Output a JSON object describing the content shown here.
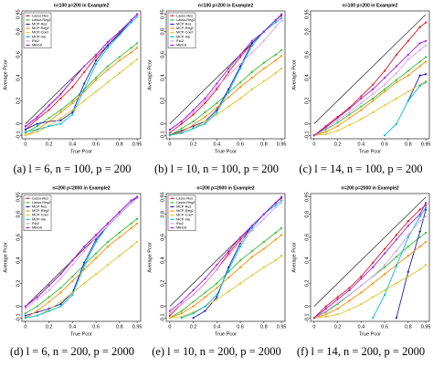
{
  "chart_data": [
    {
      "type": "line",
      "title": "n=100 p=200 in Example2",
      "caption": "(a) l = 6, n = 100, p = 200",
      "xlabel": "True Pcor",
      "ylabel": "Average Pcor",
      "legend": "upper left",
      "x": [
        0,
        0.1,
        0.2,
        0.3,
        0.4,
        0.5,
        0.6,
        0.7,
        0.8,
        0.9,
        0.95
      ],
      "xlim": [
        -0.03,
        0.98
      ],
      "xticks": [
        0,
        0.2,
        0.4,
        0.6,
        0.8,
        0.95
      ],
      "ylim": [
        -0.13,
        0.98
      ],
      "yticks": [
        -0.1,
        0,
        0.2,
        0.4,
        0.6,
        0.8,
        0.95
      ],
      "series": [
        {
          "name": "Lasso-Res",
          "color": "#e41a1c",
          "values": [
            -0.05,
            0.04,
            0.12,
            0.22,
            0.32,
            0.45,
            0.58,
            0.68,
            0.79,
            0.9,
            0.95
          ]
        },
        {
          "name": "Lasso-Reg2",
          "color": "#33c233",
          "values": [
            -0.08,
            -0.02,
            0.05,
            0.12,
            0.2,
            0.3,
            0.4,
            0.5,
            0.58,
            0.66,
            0.7
          ]
        },
        {
          "name": "MCP-Res",
          "color": "#1f1fbf",
          "values": [
            -0.05,
            0.0,
            0.02,
            0.03,
            0.1,
            0.35,
            0.55,
            0.68,
            0.78,
            0.9,
            0.95
          ]
        },
        {
          "name": "MCP-Reg2",
          "color": "#ff8c00",
          "values": [
            -0.1,
            -0.05,
            0.02,
            0.1,
            0.18,
            0.28,
            0.38,
            0.47,
            0.55,
            0.62,
            0.66
          ]
        },
        {
          "name": "MCP-Coef",
          "color": "#e6c229",
          "values": [
            -0.1,
            -0.07,
            -0.02,
            0.05,
            0.12,
            0.2,
            0.28,
            0.36,
            0.44,
            0.52,
            0.56
          ]
        },
        {
          "name": "MCP-Var",
          "color": "#00bfd8",
          "values": [
            -0.07,
            -0.05,
            -0.02,
            0.0,
            0.08,
            0.3,
            0.52,
            0.66,
            0.77,
            0.88,
            0.93
          ]
        },
        {
          "name": "Rlo2",
          "color": "#e0a0e8",
          "values": [
            -0.03,
            0.05,
            0.15,
            0.25,
            0.38,
            0.5,
            0.6,
            0.7,
            0.8,
            0.9,
            0.94
          ]
        },
        {
          "name": "MBGS",
          "color": "#a020f0",
          "values": [
            -0.02,
            0.06,
            0.16,
            0.26,
            0.38,
            0.5,
            0.6,
            0.71,
            0.8,
            0.9,
            0.95
          ]
        }
      ]
    },
    {
      "type": "line",
      "title": "n=100 p=200 in Example2",
      "caption": "(b) l = 10, n = 100, p = 200",
      "xlabel": "True Pcor",
      "ylabel": "Average Pcor",
      "legend": "upper left",
      "x": [
        0,
        0.1,
        0.2,
        0.3,
        0.4,
        0.5,
        0.6,
        0.7,
        0.8,
        0.9,
        0.95
      ],
      "xlim": [
        -0.03,
        0.98
      ],
      "xticks": [
        0,
        0.2,
        0.4,
        0.6,
        0.8,
        0.95
      ],
      "ylim": [
        -0.13,
        0.98
      ],
      "yticks": [
        -0.1,
        0,
        0.2,
        0.4,
        0.6,
        0.8,
        0.95
      ],
      "series": [
        {
          "name": "Lasso-Res",
          "color": "#e41a1c",
          "values": [
            -0.08,
            0.0,
            0.08,
            0.18,
            0.3,
            0.45,
            0.58,
            0.7,
            0.8,
            0.9,
            0.94
          ]
        },
        {
          "name": "Lasso-Reg2",
          "color": "#33c233",
          "values": [
            -0.1,
            -0.04,
            0.02,
            0.1,
            0.18,
            0.27,
            0.36,
            0.45,
            0.53,
            0.6,
            0.64
          ]
        },
        {
          "name": "MCP-Res",
          "color": "#1f1fbf",
          "values": [
            -0.1,
            -0.06,
            -0.02,
            0.02,
            0.12,
            0.3,
            0.5,
            0.7,
            0.8,
            0.9,
            0.95
          ]
        },
        {
          "name": "MCP-Reg2",
          "color": "#ff8c00",
          "values": [
            -0.1,
            -0.07,
            -0.01,
            0.06,
            0.14,
            0.23,
            0.32,
            0.4,
            0.48,
            0.55,
            0.59
          ]
        },
        {
          "name": "MCP-Coef",
          "color": "#e6c229",
          "values": [
            -0.1,
            -0.08,
            -0.04,
            0.02,
            0.08,
            0.15,
            0.22,
            0.3,
            0.37,
            0.44,
            0.48
          ]
        },
        {
          "name": "MCP-Var",
          "color": "#00bfd8",
          "values": [
            -0.1,
            -0.08,
            -0.04,
            0.0,
            0.1,
            0.28,
            0.48,
            0.68,
            0.8,
            0.88,
            0.92
          ]
        },
        {
          "name": "Rlo2",
          "color": "#e0a0e8",
          "values": [
            -0.06,
            0.02,
            0.1,
            0.2,
            0.32,
            0.42,
            0.52,
            0.62,
            0.72,
            0.84,
            0.9
          ]
        },
        {
          "name": "MBGS",
          "color": "#a020f0",
          "values": [
            -0.05,
            0.02,
            0.12,
            0.22,
            0.35,
            0.48,
            0.6,
            0.72,
            0.8,
            0.9,
            0.95
          ]
        }
      ]
    },
    {
      "type": "line",
      "title": "n=100 p=200 in Example2",
      "caption": "(c) l = 14, n = 100, p = 200",
      "xlabel": "True Pcor",
      "ylabel": "Average Pcor",
      "x": [
        0,
        0.1,
        0.2,
        0.3,
        0.4,
        0.5,
        0.6,
        0.7,
        0.8,
        0.9,
        0.95
      ],
      "xlim": [
        -0.03,
        0.98
      ],
      "xticks": [
        0,
        0.2,
        0.4,
        0.6,
        0.8,
        0.95
      ],
      "ylim": [
        -0.13,
        0.98
      ],
      "yticks": [
        -0.1,
        0,
        0.2,
        0.4,
        0.6,
        0.8,
        0.95
      ],
      "series": [
        {
          "name": "Lasso-Res",
          "color": "#e41a1c",
          "values": [
            -0.1,
            -0.02,
            0.06,
            0.14,
            0.24,
            0.34,
            0.46,
            0.6,
            0.72,
            0.84,
            0.88
          ]
        },
        {
          "name": "Lasso-Reg2",
          "color": "#33c233",
          "values": [
            -0.1,
            -0.05,
            0.01,
            0.08,
            0.15,
            0.22,
            0.3,
            0.38,
            0.46,
            0.54,
            0.58
          ]
        },
        {
          "name": "MCP-Res",
          "color": "#1f1fbf",
          "values": [
            null,
            null,
            null,
            null,
            null,
            null,
            null,
            null,
            0.2,
            0.42,
            0.43
          ]
        },
        {
          "name": "MCP-Reg2",
          "color": "#ff8c00",
          "values": [
            -0.1,
            -0.07,
            -0.02,
            0.05,
            0.12,
            0.2,
            0.28,
            0.36,
            0.42,
            0.5,
            0.54
          ]
        },
        {
          "name": "MCP-Coef",
          "color": "#e6c229",
          "values": [
            -0.1,
            -0.09,
            -0.06,
            -0.01,
            0.04,
            0.1,
            0.16,
            0.22,
            0.28,
            0.34,
            0.37
          ]
        },
        {
          "name": "MCP-Var",
          "color": "#00bfd8",
          "values": [
            null,
            null,
            null,
            null,
            null,
            null,
            -0.1,
            0.0,
            0.2,
            0.33,
            0.36
          ]
        },
        {
          "name": "Rlo2",
          "color": "#e0a0e8",
          "values": [
            -0.1,
            -0.04,
            0.03,
            0.1,
            0.18,
            0.26,
            0.34,
            0.44,
            0.56,
            0.64,
            0.68
          ]
        },
        {
          "name": "MBGS",
          "color": "#a020f0",
          "values": [
            -0.1,
            -0.03,
            0.05,
            0.13,
            0.22,
            0.3,
            0.4,
            0.5,
            0.6,
            0.7,
            0.72
          ]
        }
      ]
    },
    {
      "type": "line",
      "title": "n=200 p=2000 in Example2",
      "caption": "(d) l = 6, n = 200, p = 2000",
      "xlabel": "True Pcor",
      "ylabel": "Average Pcor",
      "legend": "upper left",
      "x": [
        0,
        0.1,
        0.2,
        0.3,
        0.4,
        0.5,
        0.6,
        0.7,
        0.8,
        0.9,
        0.95
      ],
      "xlim": [
        -0.03,
        0.98
      ],
      "xticks": [
        0,
        0.2,
        0.4,
        0.6,
        0.8,
        0.95
      ],
      "ylim": [
        -0.13,
        0.98
      ],
      "yticks": [
        -0.1,
        0,
        0.2,
        0.4,
        0.6,
        0.8,
        0.95
      ],
      "series": [
        {
          "name": "Lasso-Res",
          "color": "#e41a1c",
          "values": [
            0.0,
            0.08,
            0.18,
            0.28,
            0.4,
            0.52,
            0.62,
            0.72,
            0.82,
            0.92,
            0.95
          ]
        },
        {
          "name": "Lasso-Reg2",
          "color": "#33c233",
          "values": [
            -0.06,
            0.0,
            0.08,
            0.16,
            0.26,
            0.36,
            0.46,
            0.56,
            0.64,
            0.72,
            0.76
          ]
        },
        {
          "name": "MCP-Res",
          "color": "#1f1fbf",
          "values": [
            -0.08,
            -0.05,
            -0.02,
            0.02,
            0.12,
            0.38,
            0.58,
            0.7,
            0.8,
            0.9,
            0.95
          ]
        },
        {
          "name": "MCP-Reg2",
          "color": "#ff8c00",
          "values": [
            -0.1,
            -0.04,
            0.04,
            0.12,
            0.22,
            0.32,
            0.42,
            0.52,
            0.6,
            0.68,
            0.72
          ]
        },
        {
          "name": "MCP-Coef",
          "color": "#e6c229",
          "values": [
            -0.1,
            -0.08,
            -0.03,
            0.04,
            0.12,
            0.2,
            0.28,
            0.36,
            0.44,
            0.52,
            0.56
          ]
        },
        {
          "name": "MCP-Var",
          "color": "#00bfd8",
          "values": [
            -0.1,
            -0.08,
            -0.04,
            0.0,
            0.1,
            0.35,
            0.56,
            0.7,
            0.8,
            0.9,
            0.94
          ]
        },
        {
          "name": "Rlo2",
          "color": "#e0a0e8",
          "values": [
            -0.02,
            0.06,
            0.14,
            0.24,
            0.36,
            0.48,
            0.6,
            0.7,
            0.8,
            0.9,
            0.94
          ]
        },
        {
          "name": "MBGS",
          "color": "#a020f0",
          "values": [
            0.0,
            0.08,
            0.18,
            0.28,
            0.4,
            0.52,
            0.62,
            0.72,
            0.82,
            0.92,
            0.95
          ]
        }
      ]
    },
    {
      "type": "line",
      "title": "n=200 p=2000 in Example2",
      "caption": "(e) l = 10, n = 200, p = 2000",
      "xlabel": "True Pcor",
      "ylabel": "Average Pcor",
      "legend": "upper left",
      "x": [
        0,
        0.1,
        0.2,
        0.3,
        0.4,
        0.5,
        0.6,
        0.7,
        0.8,
        0.9,
        0.95
      ],
      "xlim": [
        -0.03,
        0.98
      ],
      "xticks": [
        0,
        0.2,
        0.4,
        0.6,
        0.8,
        0.95
      ],
      "ylim": [
        -0.13,
        0.98
      ],
      "yticks": [
        -0.1,
        0,
        0.2,
        0.4,
        0.6,
        0.8,
        0.95
      ],
      "series": [
        {
          "name": "Lasso-Res",
          "color": "#e41a1c",
          "values": [
            -0.08,
            0.02,
            0.1,
            0.2,
            0.32,
            0.46,
            0.58,
            0.7,
            0.8,
            0.9,
            0.94
          ]
        },
        {
          "name": "Lasso-Reg2",
          "color": "#33c233",
          "values": [
            -0.1,
            -0.04,
            0.04,
            0.12,
            0.2,
            0.3,
            0.4,
            0.48,
            0.56,
            0.64,
            0.68
          ]
        },
        {
          "name": "MCP-Res",
          "color": "#1f1fbf",
          "values": [
            null,
            null,
            -0.1,
            -0.04,
            0.08,
            0.34,
            0.55,
            0.7,
            0.8,
            0.9,
            0.95
          ]
        },
        {
          "name": "MCP-Reg2",
          "color": "#ff8c00",
          "values": [
            -0.1,
            -0.06,
            0.0,
            0.08,
            0.16,
            0.25,
            0.34,
            0.43,
            0.5,
            0.58,
            0.62
          ]
        },
        {
          "name": "MCP-Coef",
          "color": "#e6c229",
          "values": [
            -0.1,
            -0.09,
            -0.05,
            0.0,
            0.06,
            0.13,
            0.2,
            0.27,
            0.34,
            0.4,
            0.44
          ]
        },
        {
          "name": "MCP-Var",
          "color": "#00bfd8",
          "values": [
            null,
            -0.1,
            -0.06,
            0.0,
            0.1,
            0.32,
            0.52,
            0.68,
            0.8,
            0.88,
            0.92
          ]
        },
        {
          "name": "Rlo2",
          "color": "#e0a0e8",
          "values": [
            -0.06,
            0.02,
            0.1,
            0.2,
            0.32,
            0.44,
            0.56,
            0.66,
            0.76,
            0.86,
            0.9
          ]
        },
        {
          "name": "MBGS",
          "color": "#a020f0",
          "values": [
            -0.04,
            0.04,
            0.14,
            0.24,
            0.36,
            0.48,
            0.6,
            0.7,
            0.8,
            0.9,
            0.95
          ]
        }
      ]
    },
    {
      "type": "line",
      "title": "n=200 p=2000 in Example2",
      "caption": "(f) l = 14, n = 200, p = 2000",
      "xlabel": "True Pcor",
      "ylabel": "Average Pcor",
      "x": [
        0,
        0.1,
        0.2,
        0.3,
        0.4,
        0.5,
        0.6,
        0.7,
        0.8,
        0.9,
        0.95
      ],
      "xlim": [
        -0.03,
        0.98
      ],
      "xticks": [
        0,
        0.2,
        0.4,
        0.6,
        0.8,
        0.95
      ],
      "ylim": [
        -0.13,
        0.98
      ],
      "yticks": [
        -0.1,
        0,
        0.2,
        0.4,
        0.6,
        0.8,
        0.95
      ],
      "series": [
        {
          "name": "Lasso-Res",
          "color": "#e41a1c",
          "values": [
            -0.1,
            0.0,
            0.08,
            0.16,
            0.26,
            0.38,
            0.5,
            0.62,
            0.74,
            0.84,
            0.88
          ]
        },
        {
          "name": "Lasso-Reg2",
          "color": "#33c233",
          "values": [
            -0.1,
            -0.05,
            0.02,
            0.1,
            0.18,
            0.26,
            0.34,
            0.43,
            0.52,
            0.6,
            0.64
          ]
        },
        {
          "name": "MCP-Res",
          "color": "#1f1fbf",
          "values": [
            null,
            null,
            null,
            null,
            null,
            null,
            null,
            -0.1,
            0.3,
            0.65,
            0.84
          ]
        },
        {
          "name": "MCP-Reg2",
          "color": "#ff8c00",
          "values": [
            -0.1,
            -0.07,
            -0.02,
            0.05,
            0.12,
            0.2,
            0.28,
            0.36,
            0.44,
            0.52,
            0.56
          ]
        },
        {
          "name": "MCP-Coef",
          "color": "#e6c229",
          "values": [
            -0.1,
            -0.09,
            -0.07,
            -0.03,
            0.02,
            0.08,
            0.14,
            0.2,
            0.26,
            0.32,
            0.36
          ]
        },
        {
          "name": "MCP-Var",
          "color": "#00bfd8",
          "values": [
            null,
            null,
            null,
            null,
            null,
            -0.1,
            0.1,
            0.35,
            0.6,
            0.78,
            0.86
          ]
        },
        {
          "name": "Rlo2",
          "color": "#e0a0e8",
          "values": [
            -0.1,
            -0.04,
            0.03,
            0.1,
            0.18,
            0.26,
            0.36,
            0.48,
            0.62,
            0.74,
            0.78
          ]
        },
        {
          "name": "MBGS",
          "color": "#a020f0",
          "values": [
            -0.1,
            -0.02,
            0.06,
            0.14,
            0.24,
            0.34,
            0.46,
            0.58,
            0.7,
            0.8,
            0.9
          ]
        }
      ]
    }
  ]
}
